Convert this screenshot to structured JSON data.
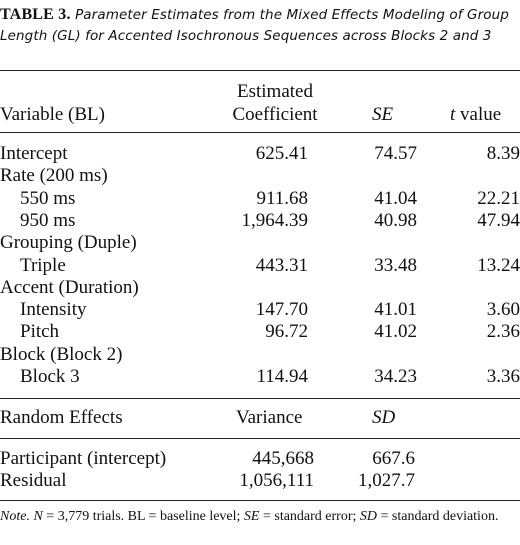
{
  "caption": {
    "label": "TABLE 3.",
    "text": "Parameter Estimates from the Mixed Effects Modeling of Group Length (GL) for Accented Isochronous Sequences across Blocks 2 and 3"
  },
  "header": {
    "variable": "Variable (BL)",
    "estimated_line1": "Estimated",
    "estimated_line2": "Coefficient",
    "se": "SE",
    "t_italic": "t",
    "t_rest": " value"
  },
  "rows": [
    {
      "label": "Intercept",
      "coef": "625.41",
      "se": "74.57",
      "t": "8.39"
    },
    {
      "label": "Rate (200 ms)",
      "coef": "",
      "se": "",
      "t": ""
    },
    {
      "label": "550 ms",
      "coef": "911.68",
      "se": "41.04",
      "t": "22.21"
    },
    {
      "label": "950 ms",
      "coef": "1,964.39",
      "se": "40.98",
      "t": "47.94"
    },
    {
      "label": "Grouping (Duple)",
      "coef": "",
      "se": "",
      "t": ""
    },
    {
      "label": "Triple",
      "coef": "443.31",
      "se": "33.48",
      "t": "13.24"
    },
    {
      "label": "Accent (Duration)",
      "coef": "",
      "se": "",
      "t": ""
    },
    {
      "label": "Intensity",
      "coef": "147.70",
      "se": "41.01",
      "t": "3.60"
    },
    {
      "label": "Pitch",
      "coef": "96.72",
      "se": "41.02",
      "t": "2.36"
    },
    {
      "label": "Block (Block 2)",
      "coef": "",
      "se": "",
      "t": ""
    },
    {
      "label": "Block 3",
      "coef": "114.94",
      "se": "34.23",
      "t": "3.36"
    }
  ],
  "random_header": {
    "label": "Random Effects",
    "variance": "Variance",
    "sd": "SD"
  },
  "random_rows": [
    {
      "label": "Participant (intercept)",
      "variance": "445,668",
      "sd": "667.6"
    },
    {
      "label": "Residual",
      "variance": "1,056,111",
      "sd": "1,027.7"
    }
  ],
  "note": {
    "prefix": "Note.",
    "n_symbol": "N",
    "part1": " = 3,779 trials. BL = baseline level; ",
    "se_symbol": "SE",
    "part2": " = standard error; ",
    "sd_symbol": "SD",
    "part3": " = standard deviation."
  }
}
